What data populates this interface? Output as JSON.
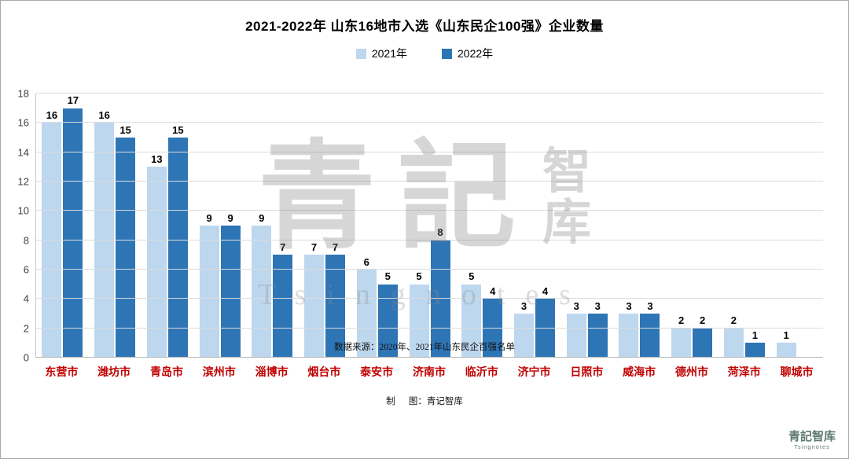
{
  "page": {
    "title": "2021-2022年 山东16地市入选《山东民企100强》企业数量",
    "footer_line1": "数据来源：2020年、2021年山东民企百强名单",
    "footer_line2": "制      图：青记智库",
    "watermark": {
      "cn_big_1": "青",
      "cn_big_2": "記",
      "cn_small_1": "智",
      "cn_small_2": "库",
      "en": "Tsingnotes"
    },
    "logo": {
      "cn": "青記智库",
      "en": "Tsingnotes"
    }
  },
  "chart_data": {
    "type": "bar",
    "title": "2021-2022年 山东16地市入选《山东民企100强》企业数量",
    "categories": [
      "东营市",
      "潍坊市",
      "青岛市",
      "滨州市",
      "淄博市",
      "烟台市",
      "泰安市",
      "济南市",
      "临沂市",
      "济宁市",
      "日照市",
      "威海市",
      "德州市",
      "菏泽市",
      "聊城市"
    ],
    "series": [
      {
        "name": "2021年",
        "color": "#BDD7EE",
        "values": [
          16,
          16,
          13,
          9,
          9,
          7,
          6,
          5,
          5,
          3,
          3,
          3,
          2,
          2,
          1
        ]
      },
      {
        "name": "2022年",
        "color": "#2E75B6",
        "values": [
          17,
          15,
          15,
          9,
          7,
          7,
          5,
          8,
          4,
          4,
          3,
          3,
          2,
          1,
          null
        ]
      }
    ],
    "xlabel": "",
    "ylabel": "",
    "ylim": [
      0,
      18
    ],
    "ytick_step": 2,
    "grid": true,
    "legend_position": "top",
    "xlabel_color": "#C00000"
  }
}
